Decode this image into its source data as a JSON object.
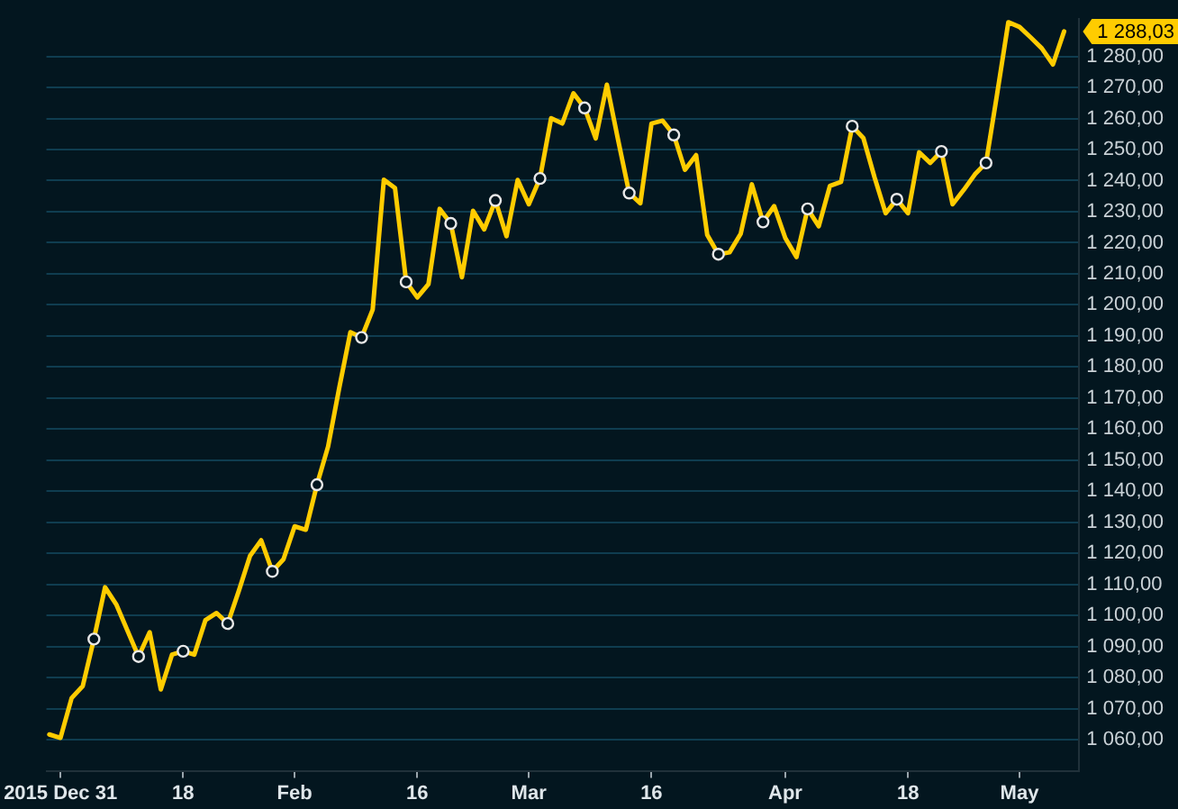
{
  "chart_data": {
    "type": "line",
    "categories": [
      null,
      "2015 Dec 31",
      null,
      null,
      null,
      null,
      null,
      null,
      null,
      null,
      null,
      null,
      "18",
      null,
      null,
      null,
      null,
      null,
      null,
      null,
      null,
      null,
      "Feb",
      null,
      null,
      null,
      null,
      null,
      null,
      null,
      null,
      null,
      null,
      "16",
      null,
      null,
      null,
      null,
      null,
      null,
      null,
      null,
      null,
      "Mar",
      null,
      null,
      null,
      null,
      null,
      null,
      null,
      null,
      null,
      null,
      "16",
      null,
      null,
      null,
      null,
      null,
      null,
      null,
      null,
      null,
      null,
      null,
      "Apr",
      null,
      null,
      null,
      null,
      null,
      null,
      null,
      null,
      null,
      null,
      "18",
      null,
      null,
      null,
      null,
      null,
      null,
      null,
      null,
      null,
      "May",
      null,
      null,
      null,
      null
    ],
    "series": [
      {
        "color": "#ffcc00",
        "marker": "none",
        "values": [
          1061.7,
          1060.6,
          1073.4,
          1077.3,
          1092.4,
          1109.1,
          1103.6,
          1095.2,
          1086.8,
          1094.6,
          1076.2,
          1087.4,
          1088.5,
          1087.4,
          1098.5,
          1100.8,
          1097.4,
          1108.0,
          1119.2,
          1124.2,
          1114.2,
          1118.1,
          1128.7,
          1127.6,
          1142.1,
          1154.4,
          1173.3,
          1191.2,
          1189.5,
          1198.5,
          1240.3,
          1237.6,
          1207.4,
          1202.4,
          1206.7,
          1230.9,
          1226.2,
          1208.9,
          1230.3,
          1224.3,
          1233.6,
          1222.1,
          1240.2,
          1232.4,
          1240.7,
          1260.1,
          1258.4,
          1268.1,
          1263.4,
          1253.6,
          1270.9,
          1253.2,
          1236.0,
          1232.7,
          1258.4,
          1259.3,
          1254.7,
          1243.5,
          1248.2,
          1222.5,
          1216.3,
          1216.9,
          1222.9,
          1238.8,
          1226.7,
          1231.8,
          1221.5,
          1215.4,
          1230.9,
          1225.3,
          1238.3,
          1239.6,
          1257.5,
          1253.7,
          1241.1,
          1229.5,
          1234.0,
          1229.5,
          1249.1,
          1245.7,
          1249.4,
          1232.4,
          1237.0,
          1242.0,
          1245.7,
          1268.0,
          1291.0,
          1289.5,
          1286.1,
          1282.6,
          1277.4,
          1288.03
        ]
      },
      {
        "type": "scatter",
        "color": "#e8e8e8",
        "marker": "circle",
        "values": [
          null,
          null,
          null,
          null,
          1092.4,
          null,
          null,
          null,
          1086.8,
          null,
          null,
          null,
          1088.5,
          null,
          null,
          null,
          1097.4,
          null,
          null,
          null,
          1114.2,
          null,
          null,
          null,
          1142.1,
          null,
          null,
          null,
          1189.5,
          null,
          null,
          null,
          1207.4,
          null,
          null,
          null,
          1226.2,
          null,
          null,
          null,
          1233.6,
          null,
          null,
          null,
          1240.7,
          null,
          null,
          null,
          1263.4,
          null,
          null,
          null,
          1236.0,
          null,
          null,
          null,
          1254.7,
          null,
          null,
          null,
          1216.3,
          null,
          null,
          null,
          1226.7,
          null,
          null,
          null,
          1230.9,
          null,
          null,
          null,
          1257.5,
          null,
          null,
          null,
          1234.0,
          null,
          null,
          null,
          1249.4,
          null,
          null,
          null,
          1245.7,
          null,
          null,
          null,
          null,
          null,
          null,
          null
        ]
      }
    ],
    "ylim": [
      1050,
      1292
    ],
    "yticks": [
      {
        "value": 1060,
        "label": "1 060,00"
      },
      {
        "value": 1070,
        "label": "1 070,00"
      },
      {
        "value": 1080,
        "label": "1 080,00"
      },
      {
        "value": 1090,
        "label": "1 090,00"
      },
      {
        "value": 1100,
        "label": "1 100,00"
      },
      {
        "value": 1110,
        "label": "1 110,00"
      },
      {
        "value": 1120,
        "label": "1 120,00"
      },
      {
        "value": 1130,
        "label": "1 130,00"
      },
      {
        "value": 1140,
        "label": "1 140,00"
      },
      {
        "value": 1150,
        "label": "1 150,00"
      },
      {
        "value": 1160,
        "label": "1 160,00"
      },
      {
        "value": 1170,
        "label": "1 170,00"
      },
      {
        "value": 1180,
        "label": "1 180,00"
      },
      {
        "value": 1190,
        "label": "1 190,00"
      },
      {
        "value": 1200,
        "label": "1 200,00"
      },
      {
        "value": 1210,
        "label": "1 210,00"
      },
      {
        "value": 1220,
        "label": "1 220,00"
      },
      {
        "value": 1230,
        "label": "1 230,00"
      },
      {
        "value": 1240,
        "label": "1 240,00"
      },
      {
        "value": 1250,
        "label": "1 250,00"
      },
      {
        "value": 1260,
        "label": "1 260,00"
      },
      {
        "value": 1270,
        "label": "1 270,00"
      },
      {
        "value": 1280,
        "label": "1 280,00"
      }
    ],
    "annotations": [
      "1 288,03"
    ],
    "grid": "y",
    "legend": false
  }
}
